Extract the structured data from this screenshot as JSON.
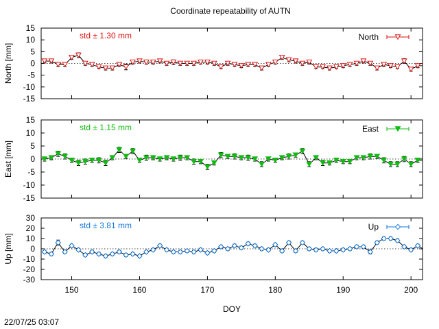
{
  "title": "Coordinate repeatability of AUTN",
  "timestamp": "22/07/25 03:07",
  "chart_data": [
    {
      "type": "line",
      "title": "Coordinate repeatability of AUTN",
      "xlabel": "DOY",
      "ylabel": "North [mm]",
      "xlim": [
        145.5,
        201.7
      ],
      "ylim": [
        -15,
        15
      ],
      "yticks": [
        -15,
        -10,
        -5,
        0,
        5,
        10,
        15
      ],
      "xticks": [
        150,
        160,
        170,
        180,
        190,
        200
      ],
      "grid": false,
      "zero_line": true,
      "legend": "North",
      "legend_position": "top-right",
      "std_label": "std ± 1.30 mm",
      "color": "#dd1111",
      "marker": "triangle-down-open",
      "x": [
        146,
        147,
        148,
        149,
        150,
        151,
        152,
        153,
        154,
        155,
        156,
        157,
        158,
        159,
        160,
        161,
        162,
        163,
        164,
        165,
        166,
        167,
        168,
        169,
        170,
        171,
        172,
        173,
        174,
        175,
        176,
        177,
        178,
        179,
        180,
        181,
        182,
        183,
        184,
        185,
        186,
        187,
        188,
        189,
        190,
        191,
        192,
        193,
        194,
        195,
        196,
        197,
        198,
        199,
        200,
        201,
        202
      ],
      "values": [
        1,
        1,
        -0.5,
        -0.5,
        2.5,
        3.5,
        0,
        -0.5,
        -1.5,
        -2,
        -2,
        -0.5,
        -1.5,
        0.5,
        1,
        0.5,
        0.5,
        1,
        0,
        0.5,
        0,
        0,
        0,
        0.5,
        0.5,
        0,
        -1.5,
        0,
        -0.5,
        -1,
        -0.5,
        -0.5,
        -2,
        -0.5,
        0.5,
        2.5,
        1.5,
        1,
        0,
        0.5,
        -1.5,
        -1.5,
        -2,
        -1.5,
        -1,
        -0.5,
        0,
        1,
        0,
        -2,
        -0.5,
        -1,
        -1.5,
        1,
        -2.5,
        -1,
        -1
      ],
      "errors": [
        0.8,
        0.8,
        0.8,
        0.8,
        0.8,
        1.0,
        0.8,
        0.8,
        0.8,
        0.8,
        0.8,
        0.8,
        1.2,
        0.8,
        0.8,
        0.8,
        0.8,
        0.8,
        0.8,
        1.0,
        0.8,
        0.8,
        0.8,
        0.8,
        0.8,
        0.8,
        0.8,
        0.8,
        0.8,
        0.8,
        0.8,
        0.8,
        0.8,
        0.8,
        0.8,
        0.8,
        0.8,
        0.8,
        0.8,
        0.8,
        0.8,
        0.8,
        0.8,
        0.8,
        0.8,
        0.8,
        0.8,
        0.8,
        0.8,
        0.8,
        0.8,
        0.8,
        0.8,
        1.0,
        0.8,
        0.8,
        0.8
      ]
    },
    {
      "type": "line",
      "xlabel": "DOY",
      "ylabel": "East [mm]",
      "xlim": [
        145.5,
        201.7
      ],
      "ylim": [
        -15,
        15
      ],
      "yticks": [
        -15,
        -10,
        -5,
        0,
        5,
        10,
        15
      ],
      "xticks": [
        150,
        160,
        170,
        180,
        190,
        200
      ],
      "grid": false,
      "zero_line": true,
      "legend": "East",
      "legend_position": "top-right",
      "std_label": "std ± 1.15 mm",
      "color": "#11bb11",
      "marker": "triangle-down-filled",
      "x": [
        146,
        147,
        148,
        149,
        150,
        151,
        152,
        153,
        154,
        155,
        156,
        157,
        158,
        159,
        160,
        161,
        162,
        163,
        164,
        165,
        166,
        167,
        168,
        169,
        170,
        171,
        172,
        173,
        174,
        175,
        176,
        177,
        178,
        179,
        180,
        181,
        182,
        183,
        184,
        185,
        186,
        187,
        188,
        189,
        190,
        191,
        192,
        193,
        194,
        195,
        196,
        197,
        198,
        199,
        200,
        201,
        202
      ],
      "values": [
        0,
        0.5,
        2,
        1,
        -0.5,
        -1.5,
        -1,
        -0.5,
        -0.5,
        -1.5,
        0.5,
        3.5,
        1,
        3,
        -0.5,
        0.5,
        0.5,
        0,
        0.5,
        0,
        0.5,
        0.5,
        -1,
        -1,
        -3,
        -1.5,
        1.5,
        1,
        1,
        0.5,
        0.5,
        0,
        -2,
        0,
        -0.5,
        0.5,
        1,
        1.5,
        3,
        -2,
        0.5,
        -1.5,
        -1.5,
        -0.5,
        -1,
        -1,
        0.5,
        0.5,
        1,
        1,
        -0.5,
        -2,
        -2,
        0,
        -2,
        -0.5,
        -0.5
      ],
      "errors": [
        0.8,
        0.8,
        1.0,
        1.0,
        0.8,
        1.0,
        1.0,
        0.8,
        1.0,
        1.0,
        0.8,
        1.0,
        0.8,
        1.0,
        0.8,
        1.0,
        0.8,
        0.8,
        0.8,
        0.8,
        1.0,
        0.8,
        1.0,
        0.8,
        1.0,
        0.8,
        1.0,
        0.8,
        1.0,
        0.8,
        1.0,
        0.8,
        1.0,
        0.8,
        0.8,
        0.8,
        1.0,
        0.8,
        1.0,
        1.0,
        0.8,
        1.0,
        0.8,
        0.8,
        0.8,
        0.8,
        0.8,
        0.8,
        1.0,
        0.8,
        1.0,
        1.0,
        1.0,
        1.0,
        1.0,
        0.8,
        0.8
      ]
    },
    {
      "type": "line",
      "xlabel": "DOY",
      "ylabel": "Up [mm]",
      "xlim": [
        145.5,
        201.7
      ],
      "ylim": [
        -30,
        30
      ],
      "yticks": [
        -30,
        -20,
        -10,
        0,
        10,
        20,
        30
      ],
      "xticks": [
        150,
        160,
        170,
        180,
        190,
        200
      ],
      "grid": false,
      "zero_line": true,
      "legend": "Up",
      "legend_position": "top-right",
      "std_label": "std ± 3.81 mm",
      "color": "#1177dd",
      "marker": "diamond-open",
      "x": [
        146,
        147,
        148,
        149,
        150,
        151,
        152,
        153,
        154,
        155,
        156,
        157,
        158,
        159,
        160,
        161,
        162,
        163,
        164,
        165,
        166,
        167,
        168,
        169,
        170,
        171,
        172,
        173,
        174,
        175,
        176,
        177,
        178,
        179,
        180,
        181,
        182,
        183,
        184,
        185,
        186,
        187,
        188,
        189,
        190,
        191,
        192,
        193,
        194,
        195,
        196,
        197,
        198,
        199,
        200,
        201,
        202
      ],
      "values": [
        -3,
        -5,
        6,
        -3,
        3,
        -1,
        -6,
        -3,
        -5,
        -7,
        -5,
        -3,
        -6,
        -5,
        -7,
        -3,
        -1,
        3,
        -1,
        -3,
        -3,
        -2,
        -3,
        -1,
        -4,
        -2,
        2,
        0,
        3,
        1,
        5,
        3,
        0,
        -1,
        4,
        -2,
        6,
        -2,
        6,
        0,
        -1,
        0,
        -2,
        -2,
        -1,
        0,
        2,
        2,
        -3,
        6,
        10,
        10,
        8,
        2,
        -1,
        3,
        -1
      ],
      "errors": [
        1.5,
        1.5,
        2.5,
        1.5,
        1.5,
        1.5,
        1.5,
        1.5,
        1.5,
        1.5,
        1.5,
        1.5,
        1.5,
        1.5,
        1.5,
        1.5,
        1.5,
        1.5,
        1.5,
        1.5,
        1.5,
        1.5,
        1.5,
        1.5,
        1.5,
        1.5,
        1.5,
        1.5,
        1.5,
        1.5,
        1.5,
        1.5,
        1.5,
        1.5,
        1.5,
        1.5,
        1.5,
        1.5,
        1.5,
        1.5,
        1.5,
        1.5,
        1.5,
        1.5,
        1.5,
        1.5,
        1.5,
        1.5,
        2.0,
        1.5,
        1.5,
        1.5,
        1.5,
        1.5,
        1.5,
        1.5,
        1.5
      ]
    }
  ]
}
